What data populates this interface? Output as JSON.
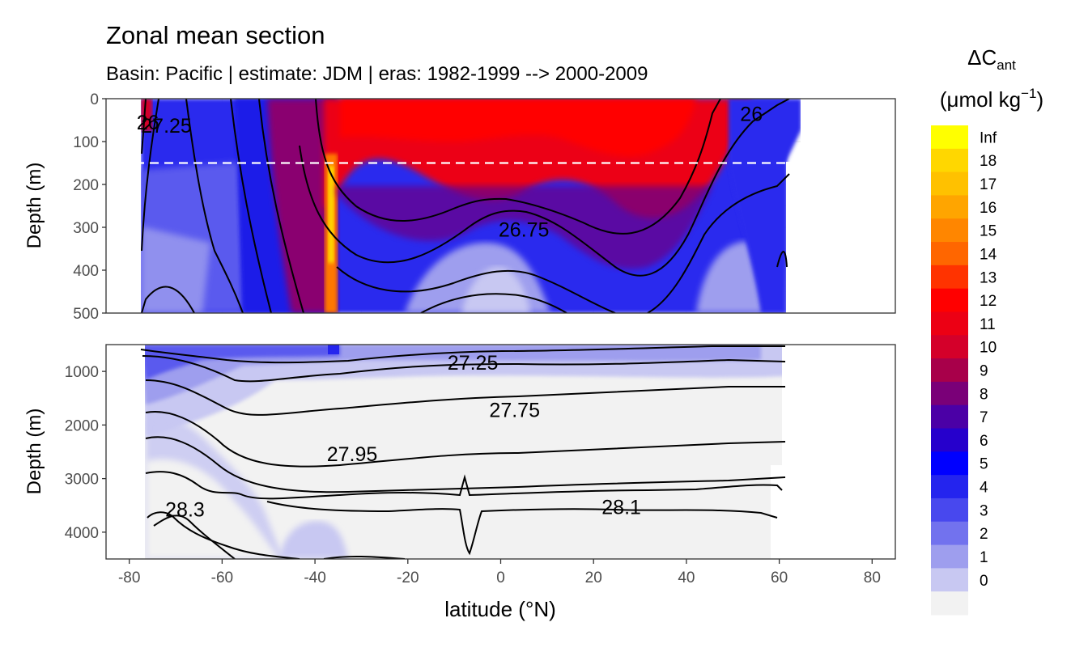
{
  "chart_data": {
    "type": "heatmap",
    "title": "Zonal mean section",
    "subtitle": "Basin: Pacific | estimate: JDM  | eras: 1982-1999 --> 2000-2009",
    "xlabel": "latitude (°N)",
    "ylabel": "Depth (m)",
    "xlim": [
      -85,
      85
    ],
    "x_ticks": [
      -80,
      -60,
      -40,
      -20,
      0,
      20,
      40,
      60,
      80
    ],
    "x_tick_labels": [
      "-80",
      "-60",
      "-40",
      "-20",
      "0",
      "20",
      "40",
      "60",
      "80"
    ],
    "data_extent_lat": [
      -77,
      61
    ],
    "panels": [
      {
        "name": "upper",
        "ylim": [
          0,
          500
        ],
        "y_ticks": [
          0,
          100,
          200,
          300,
          400,
          500
        ],
        "y_tick_labels": [
          "0",
          "100",
          "200",
          "300",
          "400",
          "500"
        ],
        "reference_line_depth": 150
      },
      {
        "name": "lower",
        "ylim": [
          500,
          4500
        ],
        "y_ticks": [
          1000,
          2000,
          3000,
          4000
        ],
        "y_tick_labels": [
          "1000",
          "2000",
          "3000",
          "4000"
        ]
      }
    ],
    "legend": {
      "title_main": "ΔC",
      "title_sub": "ant",
      "unit_main": "(μmol kg",
      "unit_sup": "−1",
      "unit_close": ")",
      "labels": [
        "Inf",
        "18",
        "17",
        "16",
        "15",
        "14",
        "13",
        "12",
        "11",
        "10",
        "9",
        "8",
        "7",
        "6",
        "5",
        "4",
        "3",
        "2",
        "1",
        "0"
      ],
      "colors": [
        "#ffff00",
        "#ffd700",
        "#ffc100",
        "#ffa500",
        "#ff8600",
        "#ff6600",
        "#ff3300",
        "#ff0000",
        "#ec0014",
        "#d4002a",
        "#a8004a",
        "#7a0078",
        "#4b00a6",
        "#2600cc",
        "#0000ff",
        "#2424ee",
        "#4848ee",
        "#7272ee",
        "#9e9eee",
        "#c8c8f2",
        "#f2f2f2"
      ]
    },
    "isopycnal_labels": [
      {
        "text": "26",
        "lat": -76,
        "depth": 55,
        "panel": "upper"
      },
      {
        "text": "27.25",
        "lat": -72,
        "depth": 62,
        "panel": "upper"
      },
      {
        "text": "26",
        "lat": 54,
        "depth": 35,
        "panel": "upper"
      },
      {
        "text": "26.75",
        "lat": 5,
        "depth": 305,
        "panel": "upper"
      },
      {
        "text": "27.25",
        "lat": -6,
        "depth": 830,
        "panel": "lower"
      },
      {
        "text": "27.75",
        "lat": 3,
        "depth": 1715,
        "panel": "lower"
      },
      {
        "text": "27.95",
        "lat": -32,
        "depth": 2540,
        "panel": "lower"
      },
      {
        "text": "28.3",
        "lat": -68,
        "depth": 3575,
        "panel": "lower"
      },
      {
        "text": "28.1",
        "lat": 26,
        "depth": 3530,
        "panel": "lower"
      }
    ]
  }
}
